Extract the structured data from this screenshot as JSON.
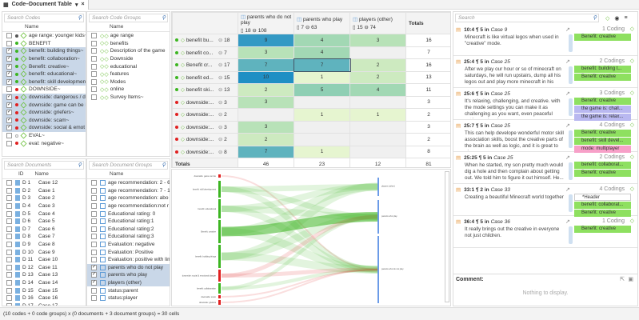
{
  "window": {
    "tab_title": "Code–Document Table",
    "tab_menu": "▾",
    "tab_close": "×"
  },
  "codes": {
    "search_placeholder": "Search Codes",
    "header": "Name",
    "items": [
      {
        "label": "age range: younger kids~",
        "color": "#555555",
        "checked": false
      },
      {
        "label": "BENEFIT",
        "color": "#3cb521",
        "checked": false
      },
      {
        "label": "benefit: building things~",
        "color": "#3cb521",
        "checked": true
      },
      {
        "label": "benefit: collaboration~",
        "color": "#3cb521",
        "checked": true
      },
      {
        "label": "Benefit: creative~",
        "color": "#3cb521",
        "checked": true
      },
      {
        "label": "benefit: educational~",
        "color": "#3cb521",
        "checked": true
      },
      {
        "label": "benefit: skill development",
        "color": "#3cb521",
        "checked": true
      },
      {
        "label": "DOWNSIDE~",
        "color": "#e02020",
        "checked": false
      },
      {
        "label": "downside: dangerous / d",
        "color": "#e02020",
        "checked": true
      },
      {
        "label": "downside: game can be b",
        "color": "#e02020",
        "checked": true
      },
      {
        "label": "downside: griefers~",
        "color": "#e02020",
        "checked": true
      },
      {
        "label": "downside: scam~",
        "color": "#e02020",
        "checked": true
      },
      {
        "label": "downside: social & emot",
        "color": "#e02020",
        "checked": true
      },
      {
        "label": "EVAL~",
        "color": "#ffffff",
        "checked": false
      },
      {
        "label": "eval: negative~",
        "color": "#e02020",
        "checked": false
      }
    ]
  },
  "code_groups": {
    "search_placeholder": "Search Code Groups",
    "header": "Name",
    "items": [
      "age range",
      "benefits",
      "Description of the game",
      "Downside",
      "educational",
      "features",
      "Modes",
      "online",
      "Survey Items~"
    ]
  },
  "documents": {
    "search_placeholder": "Search Documents",
    "header_id": "ID",
    "header_name": "Name",
    "items": [
      {
        "id": "D 1",
        "name": "Case 12"
      },
      {
        "id": "D 2",
        "name": "Case 1"
      },
      {
        "id": "D 3",
        "name": "Case 2"
      },
      {
        "id": "D 4",
        "name": "Case 3"
      },
      {
        "id": "D 5",
        "name": "Case 4"
      },
      {
        "id": "D 6",
        "name": "Case 5"
      },
      {
        "id": "D 7",
        "name": "Case 6"
      },
      {
        "id": "D 8",
        "name": "Case 7"
      },
      {
        "id": "D 9",
        "name": "Case 8"
      },
      {
        "id": "D 10",
        "name": "Case 9"
      },
      {
        "id": "D 11",
        "name": "Case 10"
      },
      {
        "id": "D 12",
        "name": "Case 11"
      },
      {
        "id": "D 13",
        "name": "Case 13"
      },
      {
        "id": "D 14",
        "name": "Case 14"
      },
      {
        "id": "D 15",
        "name": "Case 15"
      },
      {
        "id": "D 16",
        "name": "Case 16"
      },
      {
        "id": "D 17",
        "name": "Case 17"
      }
    ]
  },
  "document_groups": {
    "search_placeholder": "Search Document Groups",
    "header": "Name",
    "items": [
      {
        "label": "age recommendation: 2 - 6",
        "checked": false
      },
      {
        "label": "age recommendation: 7 - 1",
        "checked": false
      },
      {
        "label": "age recommendation: abo",
        "checked": false
      },
      {
        "label": "age recommendation:not r",
        "checked": false
      },
      {
        "label": "Educational rating: 0",
        "checked": false
      },
      {
        "label": "Educational rating:1",
        "checked": false
      },
      {
        "label": "Educational rating:2",
        "checked": false
      },
      {
        "label": "Educational rating:3",
        "checked": false
      },
      {
        "label": "Evaluation: negative",
        "checked": false
      },
      {
        "label": "Evaluation: Positive",
        "checked": false
      },
      {
        "label": "Evaluation: positive with lim",
        "checked": false
      },
      {
        "label": "parents who do not play",
        "checked": true
      },
      {
        "label": "parents who play",
        "checked": true
      },
      {
        "label": "players (other)",
        "checked": true
      },
      {
        "label": "status:parent",
        "checked": false
      },
      {
        "label": "status:player",
        "checked": false
      }
    ]
  },
  "matrix": {
    "columns": [
      {
        "label": "parents who do not play",
        "docs": "18",
        "codings": "108"
      },
      {
        "label": "parents who play",
        "docs": "7",
        "codings": "63"
      },
      {
        "label": "players (other)",
        "docs": "15",
        "codings": "74"
      }
    ],
    "totals_label": "Totals",
    "rows": [
      {
        "label": "benefit bu...",
        "color": "#3cb521",
        "count": "18",
        "values": [
          "9",
          "4",
          "3"
        ],
        "total": "16"
      },
      {
        "label": "benefit co...",
        "color": "#3cb521",
        "count": "7",
        "values": [
          "3",
          "4",
          ""
        ],
        "total": "7"
      },
      {
        "label": "Benefit cr...",
        "color": "#3cb521",
        "count": "17",
        "values": [
          "7",
          "7",
          "2"
        ],
        "total": "16"
      },
      {
        "label": "benefit ed...",
        "color": "#3cb521",
        "count": "15",
        "values": [
          "10",
          "1",
          "2"
        ],
        "total": "13"
      },
      {
        "label": "benefit ski...",
        "color": "#3cb521",
        "count": "13",
        "values": [
          "2",
          "5",
          "4"
        ],
        "total": "11"
      },
      {
        "label": "downside:...",
        "color": "#e02020",
        "count": "3",
        "values": [
          "3",
          "",
          ""
        ],
        "total": "3"
      },
      {
        "label": "downside:...",
        "color": "#e02020",
        "count": "2",
        "values": [
          "",
          "1",
          "1"
        ],
        "total": "2"
      },
      {
        "label": "downside:...",
        "color": "#e02020",
        "count": "3",
        "values": [
          "3",
          "",
          ""
        ],
        "total": "3"
      },
      {
        "label": "downside:...",
        "color": "#e02020",
        "count": "2",
        "values": [
          "2",
          "",
          ""
        ],
        "total": "2"
      },
      {
        "label": "downside:...",
        "color": "#e02020",
        "count": "8",
        "values": [
          "7",
          "1",
          ""
        ],
        "total": "8"
      }
    ],
    "column_totals": [
      "46",
      "23",
      "12"
    ],
    "grand_total": "81"
  },
  "sankey": {
    "sources": [
      {
        "label": "downside: game can be",
        "color": "#e02020"
      },
      {
        "label": "benefit: skill development",
        "color": "#3cb521"
      },
      {
        "label": "benefit: educational",
        "color": "#3cb521"
      },
      {
        "label": "Benefit: creative",
        "color": "#3cb521"
      },
      {
        "label": "benefit: building things",
        "color": "#3cb521"
      },
      {
        "label": "downside: social & emotional danger",
        "color": "#e02020"
      },
      {
        "label": "benefit: collaboration",
        "color": "#3cb521"
      },
      {
        "label": "downside: scam",
        "color": "#e02020"
      },
      {
        "label": "downside: griefers",
        "color": "#e02020"
      }
    ],
    "targets": [
      "players (other)",
      "parents who play",
      "parents who do not play"
    ]
  },
  "quotations": {
    "search_placeholder": "Search",
    "items": [
      {
        "ref": "10:4 ¶ 5 in",
        "doc": "Case 9",
        "codings": "1 Coding",
        "text": "Minecraft is like virtual legos when used in \"creative\" mode.",
        "chips": [
          {
            "label": "Benefit: creative",
            "color": "#8ee060"
          }
        ]
      },
      {
        "ref": "25:4 ¶ 5 in",
        "doc": "Case 25",
        "codings": "2 Codings",
        "text": "After we play our hour or so of minecraft on saturdays, he will run upstairs, dump all his legos out and play more minecraft in his roo...",
        "chips": [
          {
            "label": "benefit: building t...",
            "color": "#8ee060"
          },
          {
            "label": "Benefit: creative",
            "color": "#8ee060"
          }
        ]
      },
      {
        "ref": "25:6 ¶ 5 in",
        "doc": "Case 25",
        "codings": "3 Codings",
        "text": "It's relaxing, challenging, and creative. with the mode settings you can make it as challenging as you want, even peaceful setting makes it s...",
        "chips": [
          {
            "label": "Benefit: creative",
            "color": "#8ee060"
          },
          {
            "label": "the game is: chall...",
            "color": "#b9b8f0"
          },
          {
            "label": "the game is: relax...",
            "color": "#b9b8f0"
          }
        ]
      },
      {
        "ref": "25:7 ¶ 5 in",
        "doc": "Case 25",
        "codings": "4 Codings",
        "text": "This can help develope wonderful motor skill association skills, boost the creative parts of the brain as well as logic, and it is great to pl...",
        "chips": [
          {
            "label": "Benefit: creative",
            "color": "#8ee060"
          },
          {
            "label": "benefit: skill devel...",
            "color": "#8ee060"
          },
          {
            "label": "mode: multiplayer",
            "color": "#f7a0c8"
          }
        ]
      },
      {
        "ref": "25:25 ¶ 5 in",
        "doc": "Case 25",
        "codings": "2 Codings",
        "text": "When he started, my son pretty much would dig a hole and then complain about getting out. We told him to figure it out himself. He...",
        "chips": [
          {
            "label": "benefit: collaborat...",
            "color": "#8ee060"
          },
          {
            "label": "Benefit: creative",
            "color": "#8ee060"
          }
        ]
      },
      {
        "ref": "33:1 ¶ 2 in",
        "doc": "Case 33",
        "codings": "4 Codings",
        "text": "Creating a beautiful Minecraft world together",
        "chips": [
          {
            "label": "*Header",
            "color": "#ffffff"
          },
          {
            "label": "benefit: collaborat...",
            "color": "#8ee060"
          },
          {
            "label": "Benefit: creative",
            "color": "#8ee060"
          }
        ]
      },
      {
        "ref": "36:4 ¶ 5 in",
        "doc": "Case 36",
        "codings": "1 Coding",
        "text": "It really brings out the creative in everyone not just children.",
        "chips": [
          {
            "label": "Benefit: creative",
            "color": "#8ee060"
          }
        ]
      }
    ]
  },
  "comment": {
    "label": "Comment:",
    "empty": "Nothing to display."
  },
  "status": "(10 codes + 0 code groups) x (0 documents + 3 document groups) = 30 cells"
}
